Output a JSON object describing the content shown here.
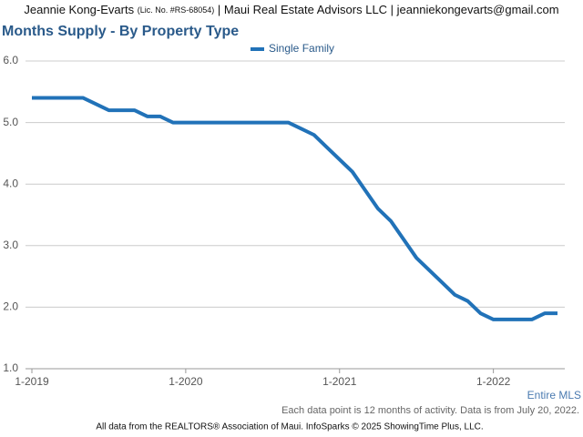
{
  "header": {
    "name": "Jeannie Kong-Evarts",
    "license": "(Lic. No. #RS-68054)",
    "rest": "| Maui Real Estate Advisors LLC | jeanniekongevarts@gmail.com"
  },
  "chart_data": {
    "type": "line",
    "title": "Months Supply - By Property Type",
    "categories": [
      "1-2019",
      null,
      null,
      null,
      null,
      null,
      null,
      null,
      null,
      null,
      null,
      null,
      "1-2020",
      null,
      null,
      null,
      null,
      null,
      null,
      null,
      null,
      null,
      null,
      null,
      "1-2021",
      null,
      null,
      null,
      null,
      null,
      null,
      null,
      null,
      null,
      null,
      null,
      "1-2022",
      null,
      null,
      null,
      null,
      null
    ],
    "series": [
      {
        "name": "Single Family",
        "color": "#2172b8",
        "values": [
          5.4,
          5.4,
          5.4,
          5.4,
          5.4,
          5.3,
          5.2,
          5.2,
          5.2,
          5.1,
          5.1,
          5.0,
          5.0,
          5.0,
          5.0,
          5.0,
          5.0,
          5.0,
          5.0,
          5.0,
          5.0,
          4.9,
          4.8,
          4.6,
          4.4,
          4.2,
          3.9,
          3.6,
          3.4,
          3.1,
          2.8,
          2.6,
          2.4,
          2.2,
          2.1,
          1.9,
          1.8,
          1.8,
          1.8,
          1.8,
          1.9,
          1.9
        ]
      }
    ],
    "ylim": [
      1,
      6
    ],
    "yticks": [
      {
        "value": 1,
        "label": "1.0"
      },
      {
        "value": 2,
        "label": "2.0"
      },
      {
        "value": 3,
        "label": "3.0"
      },
      {
        "value": 4,
        "label": "4.0"
      },
      {
        "value": 5,
        "label": "5.0"
      },
      {
        "value": 6,
        "label": "6.0"
      }
    ],
    "grid": true,
    "legend": "top",
    "annotation": "Entire MLS",
    "note": "Each data point is 12 months of activity. Data is from July 20, 2022."
  },
  "footer": "All data from the REALTORS® Association of Maui. InfoSparks © 2025 ShowingTime Plus, LLC."
}
